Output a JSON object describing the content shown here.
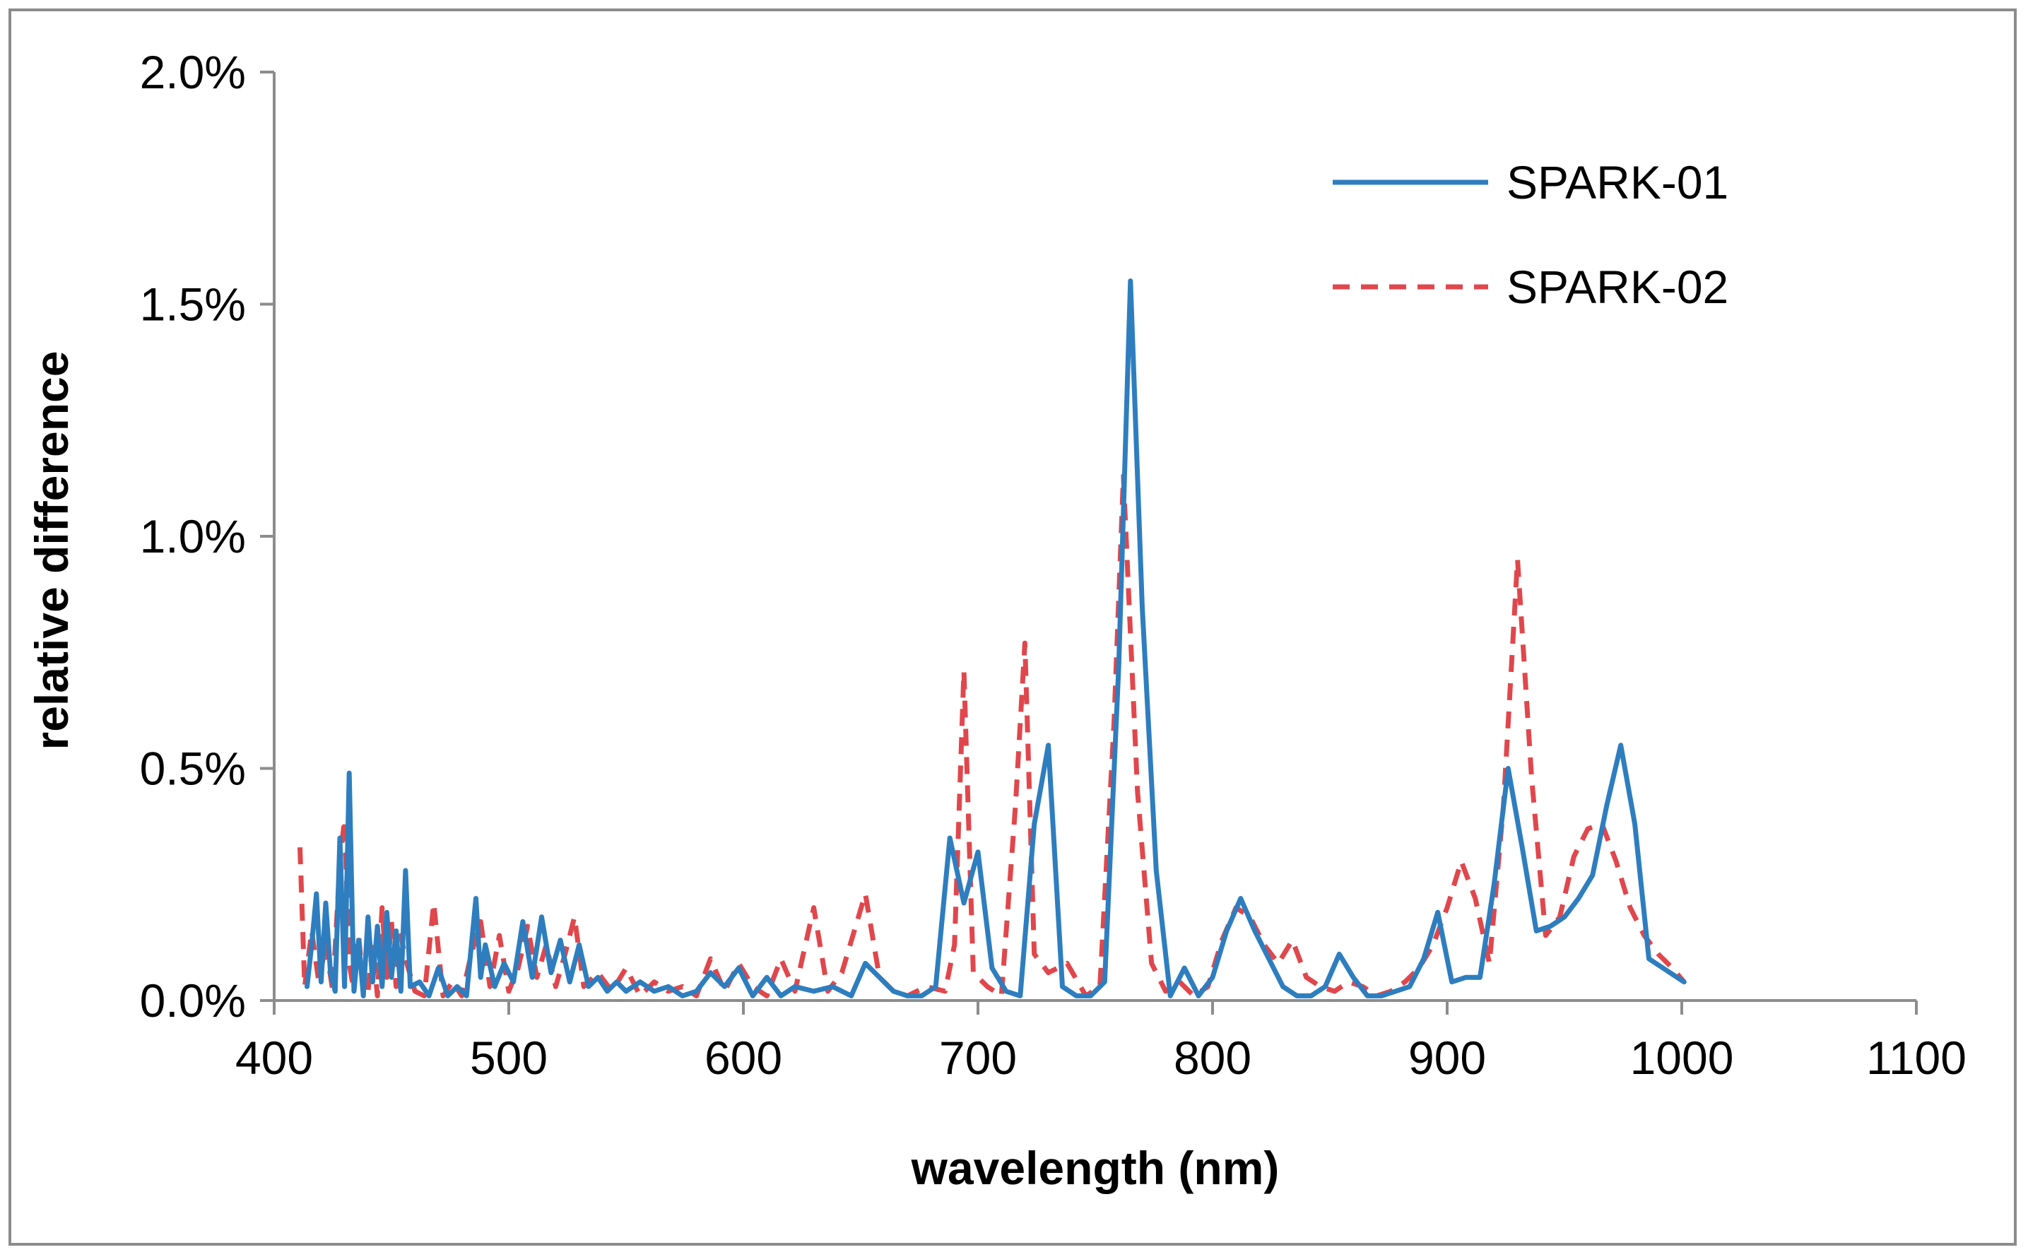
{
  "chart_data": {
    "type": "line",
    "title": "",
    "xlabel": "wavelength (nm)",
    "ylabel": "relative difference",
    "xlim": [
      400,
      1100
    ],
    "ylim": [
      0,
      0.02
    ],
    "x_ticks": [
      400,
      500,
      600,
      700,
      800,
      900,
      1000,
      1100
    ],
    "x_tick_labels": [
      "400",
      "500",
      "600",
      "700",
      "800",
      "900",
      "1000",
      "1100"
    ],
    "y_ticks": [
      0,
      0.005,
      0.01,
      0.015,
      0.02
    ],
    "y_tick_labels": [
      "0.0%",
      "0.5%",
      "1.0%",
      "1.5%",
      "2.0%"
    ],
    "grid": false,
    "legend_position": "top-right",
    "series": [
      {
        "name": "SPARK-01",
        "color": "#2e7ebf",
        "dash": "solid",
        "x": [
          414,
          416,
          418,
          420,
          422,
          424,
          426,
          428,
          430,
          432,
          434,
          436,
          438,
          440,
          442,
          444,
          446,
          448,
          450,
          452,
          454,
          456,
          458,
          462,
          466,
          470,
          474,
          478,
          482,
          486,
          488,
          490,
          494,
          498,
          502,
          506,
          510,
          514,
          518,
          522,
          526,
          530,
          534,
          538,
          542,
          546,
          550,
          556,
          562,
          568,
          574,
          580,
          586,
          592,
          598,
          604,
          610,
          616,
          622,
          630,
          638,
          646,
          652,
          658,
          664,
          670,
          676,
          682,
          688,
          694,
          700,
          706,
          712,
          718,
          724,
          730,
          736,
          742,
          748,
          754,
          760,
          765,
          770,
          776,
          782,
          788,
          794,
          800,
          806,
          812,
          818,
          824,
          830,
          836,
          842,
          848,
          854,
          860,
          866,
          872,
          878,
          884,
          890,
          896,
          902,
          908,
          914,
          920,
          926,
          932,
          938,
          944,
          950,
          956,
          962,
          968,
          974,
          980,
          986,
          992,
          998,
          1001
        ],
        "y": [
          0.0003,
          0.0012,
          0.0023,
          0.0004,
          0.0021,
          0.0006,
          0.0002,
          0.0035,
          0.0003,
          0.0049,
          0.0002,
          0.0013,
          0.0001,
          0.0018,
          0.0004,
          0.0016,
          0.0003,
          0.0019,
          0.0005,
          0.0015,
          0.0002,
          0.0028,
          0.0003,
          0.0004,
          0.0001,
          0.0007,
          0.0001,
          0.0003,
          0.0001,
          0.0022,
          0.0005,
          0.0012,
          0.0003,
          0.0008,
          0.0004,
          0.0017,
          0.0005,
          0.0018,
          0.0006,
          0.0013,
          0.0004,
          0.0012,
          0.0003,
          0.0005,
          0.0002,
          0.0004,
          0.0002,
          0.0004,
          0.0002,
          0.0003,
          0.0001,
          0.0002,
          0.0006,
          0.0003,
          0.0007,
          0.0001,
          0.0005,
          0.0001,
          0.0003,
          0.0002,
          0.0003,
          0.0001,
          0.0008,
          0.0005,
          0.0002,
          0.0001,
          0.0001,
          0.0003,
          0.0035,
          0.0021,
          0.0032,
          0.0007,
          0.0002,
          0.0001,
          0.0038,
          0.0055,
          0.0003,
          0.0001,
          0.0001,
          0.0004,
          0.0072,
          0.0155,
          0.0085,
          0.0028,
          0.0001,
          0.0007,
          0.0001,
          0.0005,
          0.0015,
          0.0022,
          0.0015,
          0.0009,
          0.0003,
          0.0001,
          0.0001,
          0.0003,
          0.001,
          0.0005,
          0.0001,
          0.0001,
          0.0002,
          0.0003,
          0.0009,
          0.0019,
          0.0004,
          0.0005,
          0.0005,
          0.0025,
          0.005,
          0.0033,
          0.0015,
          0.0016,
          0.0018,
          0.0022,
          0.0027,
          0.0042,
          0.0055,
          0.0038,
          0.0009,
          0.0007,
          0.0005,
          0.0004
        ]
      },
      {
        "name": "SPARK-02",
        "color": "#e0474c",
        "dash": "dashed",
        "x": [
          411,
          413,
          416,
          419,
          422,
          425,
          428,
          430,
          432,
          434,
          436,
          438,
          440,
          442,
          444,
          446,
          448,
          450,
          452,
          454,
          456,
          460,
          464,
          468,
          472,
          476,
          480,
          484,
          488,
          492,
          496,
          500,
          504,
          508,
          512,
          516,
          520,
          524,
          528,
          532,
          538,
          544,
          550,
          556,
          562,
          568,
          574,
          580,
          586,
          592,
          598,
          604,
          610,
          616,
          622,
          630,
          636,
          642,
          652,
          658,
          664,
          670,
          678,
          686,
          690,
          694,
          698,
          704,
          710,
          716,
          720,
          724,
          730,
          738,
          746,
          752,
          758,
          762,
          768,
          774,
          780,
          786,
          792,
          798,
          804,
          810,
          816,
          822,
          828,
          834,
          840,
          846,
          852,
          858,
          864,
          870,
          876,
          882,
          888,
          894,
          900,
          906,
          912,
          918,
          924,
          930,
          936,
          942,
          948,
          954,
          960,
          966,
          972,
          978,
          984,
          990,
          996,
          1001
        ],
        "y": [
          0.0033,
          0.0003,
          0.0015,
          0.0004,
          0.0012,
          0.0002,
          0.003,
          0.0039,
          0.0008,
          0.0002,
          0.0014,
          0.0003,
          0.0002,
          0.0012,
          0.0001,
          0.002,
          0.0005,
          0.0017,
          0.0003,
          0.0014,
          0.0009,
          0.0002,
          0.0001,
          0.0021,
          0.0001,
          0.0004,
          0.0001,
          0.001,
          0.0017,
          0.0003,
          0.0014,
          0.0002,
          0.0007,
          0.0016,
          0.0005,
          0.0012,
          0.0003,
          0.001,
          0.0018,
          0.0003,
          0.0006,
          0.0002,
          0.0007,
          0.0001,
          0.0004,
          0.0002,
          0.0003,
          0.0001,
          0.0009,
          0.0002,
          0.0008,
          0.0003,
          0.0001,
          0.0009,
          0.0002,
          0.002,
          0.0002,
          0.0006,
          0.0023,
          0.0005,
          0.0002,
          0.0001,
          0.0003,
          0.0002,
          0.0012,
          0.0071,
          0.0006,
          0.0003,
          0.0001,
          0.0042,
          0.0077,
          0.001,
          0.0006,
          0.0008,
          0.0001,
          0.0003,
          0.006,
          0.0113,
          0.0045,
          0.0008,
          0.0002,
          0.0004,
          0.0001,
          0.0003,
          0.0013,
          0.002,
          0.0018,
          0.0012,
          0.0008,
          0.0013,
          0.0005,
          0.0003,
          0.0002,
          0.0004,
          0.0003,
          0.0001,
          0.0002,
          0.0004,
          0.0007,
          0.0012,
          0.002,
          0.003,
          0.0022,
          0.0008,
          0.0042,
          0.0095,
          0.0048,
          0.0014,
          0.0018,
          0.0031,
          0.0037,
          0.0038,
          0.003,
          0.002,
          0.0014,
          0.001,
          0.0007,
          0.0004
        ]
      }
    ]
  }
}
